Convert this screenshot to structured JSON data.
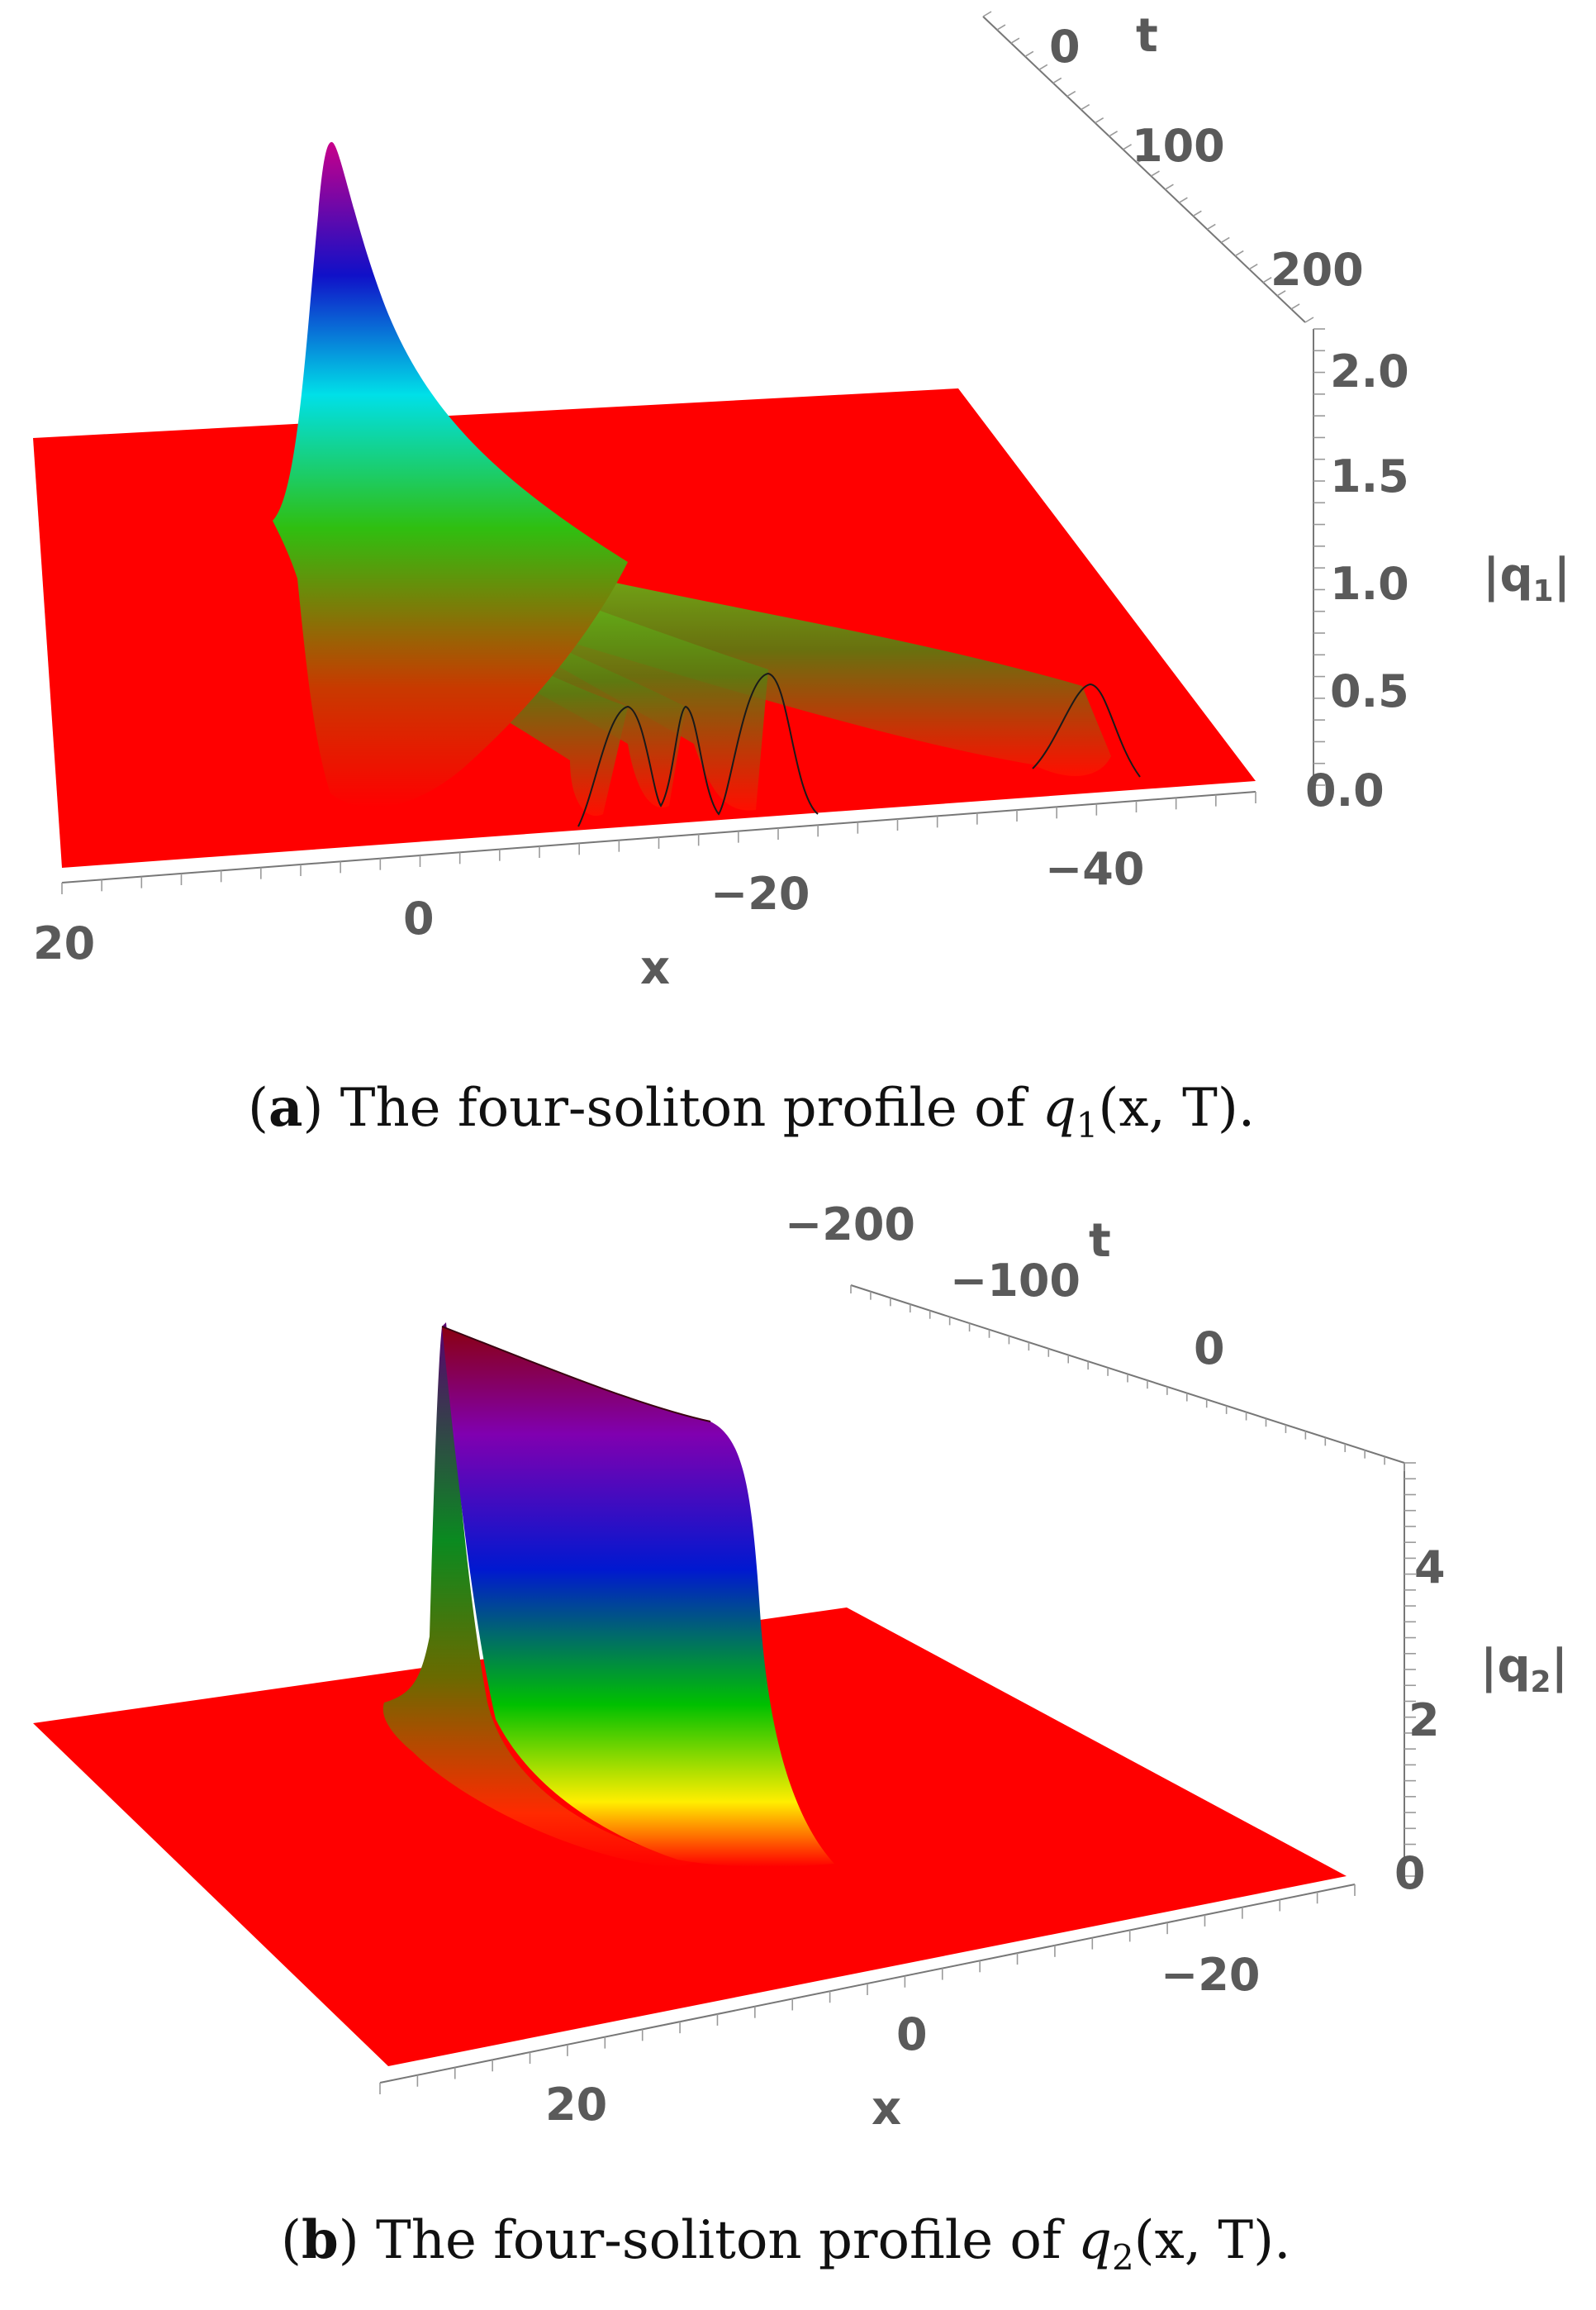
{
  "chart_data": [
    {
      "type": "surface3d",
      "panel": "a",
      "caption": {
        "label": "a",
        "text": "The four-soliton profile of",
        "func": "q",
        "sub": "1",
        "args": "(x, T)."
      },
      "xlabel": "x",
      "ylabel": "t",
      "zlabel": "|q1|",
      "zlabel_parts": {
        "base": "|q",
        "sub": "1",
        "end": "|"
      },
      "x_ticks": [
        "20",
        "0",
        "−20",
        "−40"
      ],
      "t_ticks": [
        "0",
        "100",
        "200"
      ],
      "z_ticks": [
        "0.0",
        "0.5",
        "1.0",
        "1.5",
        "2.0"
      ],
      "xlim": [
        25,
        -50
      ],
      "tlim": [
        0,
        230
      ],
      "zlim": [
        0,
        2.1
      ],
      "peak_amplitudes": [
        0.45,
        0.45,
        0.6,
        0.55,
        2.05
      ],
      "colors": {
        "floor": "#ff0000",
        "low": "#ff0000",
        "mid": "#2fbf10",
        "high": "#8a00c8"
      }
    },
    {
      "type": "surface3d",
      "panel": "b",
      "caption": {
        "label": "b",
        "text": "The four-soliton profile of",
        "func": "q",
        "sub": "2",
        "args": "(x, T)."
      },
      "xlabel": "x",
      "ylabel": "t",
      "zlabel": "|q2|",
      "zlabel_parts": {
        "base": "|q",
        "sub": "2",
        "end": "|"
      },
      "x_ticks": [
        "20",
        "0",
        "−20"
      ],
      "t_ticks": [
        "−200",
        "−100",
        "0"
      ],
      "z_ticks": [
        "0",
        "2",
        "4"
      ],
      "xlim": [
        35,
        -30
      ],
      "tlim": [
        -230,
        50
      ],
      "zlim": [
        0,
        5.2
      ],
      "peak_amplitude": 5.0,
      "colors": {
        "floor": "#ff0000",
        "yellow": "#ffee00",
        "green": "#00b400",
        "blue": "#0018c8",
        "purple": "#8a00a8"
      }
    }
  ]
}
